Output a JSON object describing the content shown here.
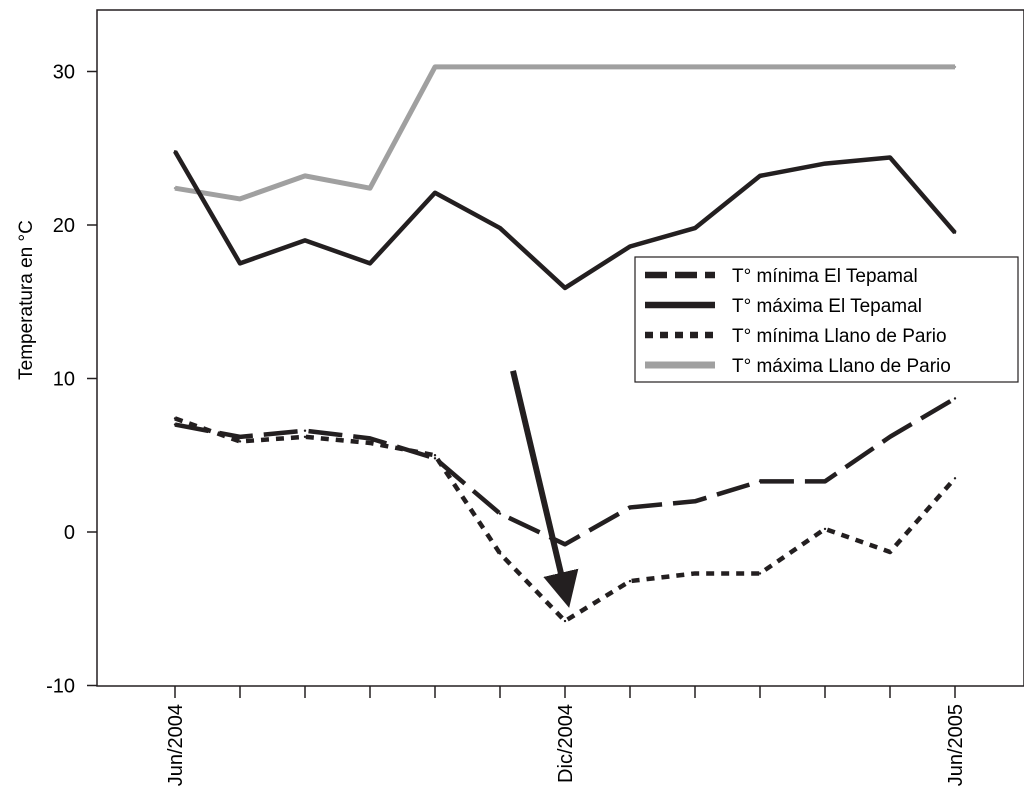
{
  "chart_data": {
    "type": "line",
    "ylabel": "Temperatura en °C",
    "ylim": [
      -10,
      34
    ],
    "yticks": [
      -10,
      0,
      10,
      20,
      30
    ],
    "x": [
      "2004-06",
      "2004-07",
      "2004-08",
      "2004-09",
      "2004-10",
      "2004-11",
      "2004-12",
      "2005-01",
      "2005-02",
      "2005-03",
      "2005-04",
      "2005-05",
      "2005-06"
    ],
    "xtick_labels": [
      {
        "index": 0,
        "label": "Jun/2004"
      },
      {
        "index": 6,
        "label": "Dic/2004"
      },
      {
        "index": 12,
        "label": "Jun/2005"
      }
    ],
    "grid": false,
    "legend_position": "center-right",
    "series": [
      {
        "name": "T° mínima El Tepamal",
        "style": "long-dash",
        "color": "#231f20",
        "values": [
          7.0,
          6.2,
          6.6,
          6.1,
          4.8,
          1.2,
          -0.8,
          1.6,
          2.0,
          3.3,
          3.3,
          6.2,
          8.7
        ]
      },
      {
        "name": "T° máxima El Tepamal",
        "style": "solid-thick",
        "color": "#231f20",
        "values": [
          24.8,
          17.5,
          19.0,
          17.5,
          22.1,
          19.8,
          15.9,
          18.6,
          19.8,
          23.2,
          24.0,
          24.4,
          19.5
        ]
      },
      {
        "name": "T° mínima Llano de Pario",
        "style": "dotted",
        "color": "#231f20",
        "values": [
          7.4,
          5.9,
          6.2,
          5.8,
          5.0,
          -1.4,
          -5.8,
          -3.2,
          -2.7,
          -2.7,
          0.2,
          -1.3,
          3.5
        ]
      },
      {
        "name": "T° máxima Llano de Pario",
        "style": "solid-gray",
        "color": "#a0a0a0",
        "values": [
          22.4,
          21.7,
          23.2,
          22.4,
          30.3,
          30.3,
          30.3,
          30.3,
          30.3,
          30.3,
          30.3,
          30.3,
          30.3
        ]
      }
    ],
    "annotations": [
      {
        "type": "arrow",
        "from": {
          "x": 5.2,
          "y": 10.5
        },
        "to": {
          "x": 6.0,
          "y": -3.8
        }
      }
    ]
  }
}
